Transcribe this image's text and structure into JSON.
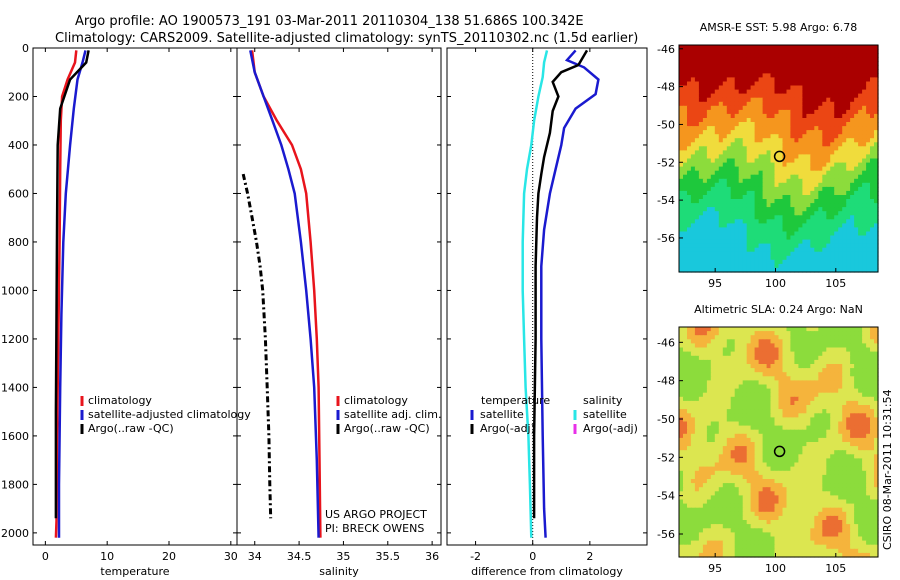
{
  "header": {
    "line1": "Argo profile: AO 1900573_191 03-Mar-2011 20110304_138 51.686S 100.342E",
    "line2": "Climatology: CARS2009. Satellite-adjusted climatology: synTS_20110302.nc (1.5d earlier)"
  },
  "side_label": "CSIRO 08-Mar-2011 10:31:54",
  "credit": {
    "line1": "US ARGO PROJECT",
    "line2": "PI: BRECK OWENS"
  },
  "colors": {
    "red": "#e8141c",
    "blue": "#1a1acf",
    "black": "#000000",
    "cyan": "#29e6e6",
    "magenta": "#e830e8"
  },
  "chart_data": [
    {
      "type": "line",
      "id": "temperature",
      "xlabel": "temperature",
      "ylabel": "",
      "xlim": [
        -2,
        31
      ],
      "ylim": [
        2050,
        0
      ],
      "x_ticks": [
        0,
        10,
        20,
        30
      ],
      "y_ticks": [
        0,
        200,
        400,
        600,
        800,
        1000,
        1200,
        1400,
        1600,
        1800,
        2000
      ],
      "legend": [
        "climatology",
        "satellite-adjusted climatology",
        "Argo(..raw -QC)"
      ],
      "series": [
        {
          "name": "climatology",
          "color": "red",
          "points": [
            [
              5.0,
              10
            ],
            [
              4.8,
              60
            ],
            [
              3.6,
              130
            ],
            [
              2.7,
              200
            ],
            [
              2.5,
              300
            ],
            [
              2.4,
              500
            ],
            [
              2.3,
              800
            ],
            [
              2.1,
              1200
            ],
            [
              1.9,
              1600
            ],
            [
              1.8,
              1950
            ],
            [
              1.7,
              2020
            ]
          ]
        },
        {
          "name": "satellite-adjusted climatology",
          "color": "blue",
          "points": [
            [
              6.5,
              10
            ],
            [
              6.0,
              60
            ],
            [
              5.2,
              130
            ],
            [
              4.6,
              250
            ],
            [
              4.0,
              400
            ],
            [
              3.3,
              600
            ],
            [
              2.9,
              800
            ],
            [
              2.6,
              1100
            ],
            [
              2.4,
              1400
            ],
            [
              2.2,
              1800
            ],
            [
              2.2,
              2020
            ]
          ]
        },
        {
          "name": "Argo(..raw -QC)",
          "color": "black",
          "points": [
            [
              7.0,
              10
            ],
            [
              6.6,
              60
            ],
            [
              4.0,
              130
            ],
            [
              2.4,
              250
            ],
            [
              2.0,
              400
            ],
            [
              1.9,
              700
            ],
            [
              1.8,
              1100
            ],
            [
              1.7,
              1500
            ],
            [
              1.7,
              1900
            ],
            [
              1.7,
              1940
            ]
          ]
        }
      ]
    },
    {
      "type": "line",
      "id": "salinity",
      "xlabel": "salinity",
      "ylabel": "",
      "xlim": [
        33.8,
        36.1
      ],
      "ylim": [
        2050,
        0
      ],
      "x_ticks": [
        34,
        34.5,
        35,
        35.5,
        36
      ],
      "legend": [
        "climatology",
        "satellite adj. clim.",
        "Argo(..raw -QC)"
      ],
      "series": [
        {
          "name": "climatology",
          "color": "red",
          "points": [
            [
              33.97,
              10
            ],
            [
              34.0,
              100
            ],
            [
              34.1,
              200
            ],
            [
              34.25,
              300
            ],
            [
              34.42,
              400
            ],
            [
              34.52,
              500
            ],
            [
              34.58,
              600
            ],
            [
              34.63,
              800
            ],
            [
              34.67,
              1000
            ],
            [
              34.7,
              1200
            ],
            [
              34.72,
              1400
            ],
            [
              34.73,
              1700
            ],
            [
              34.74,
              2020
            ]
          ]
        },
        {
          "name": "satellite adj. clim.",
          "color": "blue",
          "points": [
            [
              33.95,
              10
            ],
            [
              34.0,
              100
            ],
            [
              34.1,
              200
            ],
            [
              34.2,
              300
            ],
            [
              34.3,
              400
            ],
            [
              34.38,
              500
            ],
            [
              34.45,
              600
            ],
            [
              34.52,
              800
            ],
            [
              34.58,
              1000
            ],
            [
              34.63,
              1200
            ],
            [
              34.67,
              1400
            ],
            [
              34.7,
              1700
            ],
            [
              34.72,
              2020
            ]
          ]
        },
        {
          "name": "Argo(..raw -QC)",
          "color": "black",
          "dashed": true,
          "points": [
            [
              33.87,
              520
            ],
            [
              33.92,
              600
            ],
            [
              33.97,
              700
            ],
            [
              34.02,
              800
            ],
            [
              34.06,
              900
            ],
            [
              34.09,
              1000
            ],
            [
              34.12,
              1200
            ],
            [
              34.14,
              1400
            ],
            [
              34.16,
              1600
            ],
            [
              34.17,
              1800
            ],
            [
              34.18,
              1940
            ]
          ]
        }
      ]
    },
    {
      "type": "line",
      "id": "difference",
      "xlabel": "difference from climatology",
      "ylabel": "",
      "xlim": [
        -3,
        4
      ],
      "ylim": [
        2050,
        0
      ],
      "x_ticks": [
        -2,
        0,
        2
      ],
      "legend_groups": [
        {
          "title": "temperature",
          "items": [
            "satellite",
            "Argo(-adj)"
          ]
        },
        {
          "title": "salinity",
          "items": [
            "satellite",
            "Argo(-adj)"
          ]
        }
      ],
      "series": [
        {
          "name": "temperature satellite",
          "color": "blue",
          "points": [
            [
              1.5,
              10
            ],
            [
              1.2,
              50
            ],
            [
              1.8,
              80
            ],
            [
              2.3,
              130
            ],
            [
              2.2,
              190
            ],
            [
              1.5,
              250
            ],
            [
              1.1,
              330
            ],
            [
              1.0,
              400
            ],
            [
              0.8,
              500
            ],
            [
              0.6,
              600
            ],
            [
              0.4,
              750
            ],
            [
              0.3,
              900
            ],
            [
              0.3,
              1200
            ],
            [
              0.35,
              1600
            ],
            [
              0.4,
              1900
            ],
            [
              0.45,
              2020
            ]
          ]
        },
        {
          "name": "temperature Argo(-adj)",
          "color": "black",
          "points": [
            [
              1.9,
              10
            ],
            [
              1.6,
              70
            ],
            [
              1.0,
              100
            ],
            [
              0.7,
              140
            ],
            [
              0.9,
              200
            ],
            [
              0.7,
              260
            ],
            [
              0.6,
              350
            ],
            [
              0.4,
              450
            ],
            [
              0.3,
              520
            ],
            [
              0.2,
              600
            ],
            [
              0.15,
              700
            ],
            [
              0.1,
              900
            ],
            [
              0.1,
              1200
            ],
            [
              0.05,
              1600
            ],
            [
              0.05,
              1940
            ]
          ]
        },
        {
          "name": "salinity satellite",
          "color": "cyan",
          "points": [
            [
              0.5,
              10
            ],
            [
              0.4,
              60
            ],
            [
              0.35,
              120
            ],
            [
              0.2,
              200
            ],
            [
              0.05,
              300
            ],
            [
              -0.05,
              400
            ],
            [
              -0.2,
              500
            ],
            [
              -0.3,
              600
            ],
            [
              -0.35,
              800
            ],
            [
              -0.35,
              1000
            ],
            [
              -0.3,
              1200
            ],
            [
              -0.25,
              1400
            ],
            [
              -0.15,
              1600
            ],
            [
              -0.1,
              1800
            ],
            [
              -0.05,
              2020
            ]
          ]
        }
      ]
    },
    {
      "type": "heatmap",
      "id": "sst",
      "title": "AMSR-E SST: 5.98 Argo: 6.78",
      "xlim": [
        92,
        108.5
      ],
      "ylim": [
        -57.8,
        -45.8
      ],
      "x_ticks": [
        95,
        100,
        105
      ],
      "y_ticks": [
        -46,
        -48,
        -50,
        -52,
        -54,
        -56
      ],
      "marker": [
        100.34,
        -51.69
      ]
    },
    {
      "type": "heatmap",
      "id": "sla",
      "title": "Altimetric SLA: 0.24 Argo: NaN",
      "xlim": [
        92,
        108.5
      ],
      "ylim": [
        -57.2,
        -45.2
      ],
      "x_ticks": [
        95,
        100,
        105
      ],
      "y_ticks": [
        -46,
        -48,
        -50,
        -52,
        -54,
        -56
      ],
      "marker": [
        100.34,
        -51.69
      ]
    }
  ]
}
